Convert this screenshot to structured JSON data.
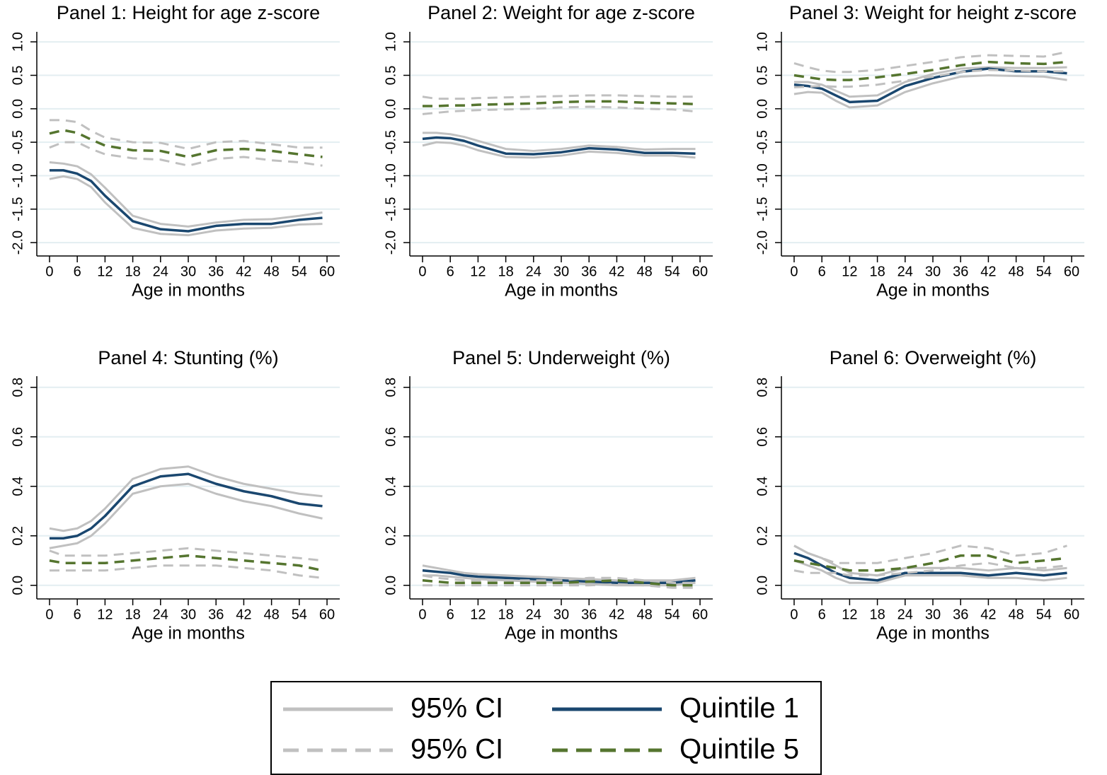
{
  "chart_data": [
    {
      "type": "line",
      "title": "Panel 1: Height for age z-score",
      "xlabel": "Age in months",
      "x": [
        0,
        3,
        6,
        9,
        12,
        18,
        24,
        30,
        36,
        42,
        48,
        54,
        59
      ],
      "xlim": [
        -2.75,
        62.75
      ],
      "xticks": [
        0,
        6,
        12,
        18,
        24,
        30,
        36,
        42,
        48,
        54,
        60
      ],
      "ylim": [
        -2.2,
        1.15
      ],
      "yticks": [
        {
          "value": -2,
          "label": "-2.0"
        },
        -1.5,
        {
          "value": -1,
          "label": "-1.0"
        },
        -0.5,
        {
          "value": 0,
          "label": "0.0"
        },
        0.5,
        {
          "value": 1,
          "label": "1.0"
        }
      ],
      "grid": true,
      "series": [
        {
          "lower": [
            -1.05,
            -1.01,
            -1.05,
            -1.17,
            -1.4,
            -1.78,
            -1.87,
            -1.89,
            -1.82,
            -1.79,
            -1.78,
            -1.73,
            -1.72
          ],
          "upper": [
            -0.8,
            -0.82,
            -0.86,
            -0.98,
            -1.18,
            -1.6,
            -1.72,
            -1.76,
            -1.7,
            -1.66,
            -1.65,
            -1.6,
            -1.55
          ]
        },
        {
          "values": [
            -0.92,
            -0.92,
            -0.97,
            -1.08,
            -1.3,
            -1.68,
            -1.8,
            -1.83,
            -1.75,
            -1.72,
            -1.72,
            -1.66,
            -1.63
          ]
        },
        {
          "lower": [
            -0.58,
            -0.5,
            -0.5,
            -0.6,
            -0.68,
            -0.74,
            -0.76,
            -0.85,
            -0.75,
            -0.72,
            -0.77,
            -0.8,
            -0.85
          ],
          "upper": [
            -0.17,
            -0.17,
            -0.2,
            -0.33,
            -0.43,
            -0.5,
            -0.51,
            -0.6,
            -0.5,
            -0.48,
            -0.53,
            -0.58,
            -0.58
          ]
        },
        {
          "values": [
            -0.37,
            -0.32,
            -0.36,
            -0.46,
            -0.55,
            -0.62,
            -0.63,
            -0.72,
            -0.62,
            -0.6,
            -0.63,
            -0.68,
            -0.72
          ]
        }
      ]
    },
    {
      "type": "line",
      "title": "Panel 2: Weight for age z-score",
      "xlabel": "Age in months",
      "x": [
        0,
        3,
        6,
        9,
        12,
        18,
        24,
        30,
        36,
        42,
        48,
        54,
        59
      ],
      "xlim": [
        -2.75,
        62.75
      ],
      "xticks": [
        0,
        6,
        12,
        18,
        24,
        30,
        36,
        42,
        48,
        54,
        60
      ],
      "ylim": [
        -2.2,
        1.15
      ],
      "yticks": [
        {
          "value": -2,
          "label": "-2.0"
        },
        -1.5,
        {
          "value": -1,
          "label": "-1.0"
        },
        -0.5,
        {
          "value": 0,
          "label": "0.0"
        },
        0.5,
        {
          "value": 1,
          "label": "1.0"
        }
      ],
      "grid": true,
      "series": [
        {
          "lower": [
            -0.55,
            -0.5,
            -0.51,
            -0.55,
            -0.62,
            -0.72,
            -0.73,
            -0.7,
            -0.64,
            -0.66,
            -0.7,
            -0.7,
            -0.73
          ],
          "upper": [
            -0.36,
            -0.36,
            -0.38,
            -0.42,
            -0.48,
            -0.6,
            -0.63,
            -0.6,
            -0.55,
            -0.57,
            -0.61,
            -0.6,
            -0.6
          ]
        },
        {
          "values": [
            -0.45,
            -0.43,
            -0.44,
            -0.48,
            -0.55,
            -0.67,
            -0.68,
            -0.65,
            -0.59,
            -0.61,
            -0.66,
            -0.66,
            -0.67
          ]
        },
        {
          "lower": [
            -0.08,
            -0.06,
            -0.04,
            -0.03,
            -0.02,
            -0.01,
            0,
            0.02,
            0.03,
            0.02,
            0,
            -0.01,
            -0.04
          ],
          "upper": [
            0.18,
            0.15,
            0.15,
            0.15,
            0.16,
            0.17,
            0.18,
            0.19,
            0.2,
            0.2,
            0.19,
            0.18,
            0.18
          ]
        },
        {
          "values": [
            0.04,
            0.04,
            0.05,
            0.05,
            0.06,
            0.07,
            0.08,
            0.1,
            0.11,
            0.11,
            0.09,
            0.08,
            0.07
          ]
        }
      ]
    },
    {
      "type": "line",
      "title": "Panel 3: Weight for height z-score",
      "xlabel": "Age in months",
      "x": [
        0,
        3,
        6,
        9,
        12,
        18,
        24,
        30,
        36,
        42,
        48,
        54,
        59
      ],
      "xlim": [
        -2.75,
        62.75
      ],
      "xticks": [
        0,
        6,
        12,
        18,
        24,
        30,
        36,
        42,
        48,
        54,
        60
      ],
      "ylim": [
        -2.2,
        1.15
      ],
      "yticks": [
        {
          "value": -2,
          "label": "-2.0"
        },
        -1.5,
        {
          "value": -1,
          "label": "-1.0"
        },
        -0.5,
        {
          "value": 0,
          "label": "0.0"
        },
        0.5,
        {
          "value": 1,
          "label": "1.0"
        }
      ],
      "grid": true,
      "series": [
        {
          "lower": [
            0.22,
            0.25,
            0.24,
            0.12,
            0.02,
            0.05,
            0.25,
            0.38,
            0.48,
            0.5,
            0.49,
            0.48,
            0.43
          ],
          "upper": [
            0.4,
            0.4,
            0.36,
            0.27,
            0.18,
            0.2,
            0.4,
            0.52,
            0.6,
            0.62,
            0.61,
            0.61,
            0.62
          ]
        },
        {
          "values": [
            0.36,
            0.34,
            0.3,
            0.2,
            0.1,
            0.12,
            0.34,
            0.46,
            0.55,
            0.6,
            0.56,
            0.56,
            0.53
          ]
        },
        {
          "lower": [
            0.32,
            0.33,
            0.34,
            0.33,
            0.33,
            0.36,
            0.42,
            0.48,
            0.55,
            0.58,
            0.57,
            0.56,
            0.56
          ],
          "upper": [
            0.68,
            0.62,
            0.57,
            0.55,
            0.55,
            0.58,
            0.64,
            0.7,
            0.77,
            0.8,
            0.79,
            0.78,
            0.85
          ]
        },
        {
          "values": [
            0.5,
            0.47,
            0.44,
            0.43,
            0.43,
            0.47,
            0.52,
            0.58,
            0.65,
            0.7,
            0.68,
            0.67,
            0.7
          ]
        }
      ]
    },
    {
      "type": "line",
      "title": "Panel 4: Stunting (%)",
      "xlabel": "Age in months",
      "x": [
        0,
        3,
        6,
        9,
        12,
        18,
        24,
        30,
        36,
        42,
        48,
        54,
        59
      ],
      "xlim": [
        -2.75,
        62.75
      ],
      "xticks": [
        0,
        6,
        12,
        18,
        24,
        30,
        36,
        42,
        48,
        54,
        60
      ],
      "ylim": [
        -0.055,
        0.845
      ],
      "yticks": [
        {
          "value": 0,
          "label": "0.0"
        },
        0.2,
        0.4,
        0.6,
        0.8
      ],
      "grid": true,
      "series": [
        {
          "lower": [
            0.15,
            0.16,
            0.17,
            0.2,
            0.25,
            0.37,
            0.4,
            0.41,
            0.37,
            0.34,
            0.32,
            0.29,
            0.27
          ],
          "upper": [
            0.23,
            0.22,
            0.23,
            0.26,
            0.31,
            0.43,
            0.47,
            0.48,
            0.44,
            0.41,
            0.39,
            0.37,
            0.36
          ]
        },
        {
          "values": [
            0.19,
            0.19,
            0.2,
            0.23,
            0.28,
            0.4,
            0.44,
            0.45,
            0.41,
            0.38,
            0.36,
            0.33,
            0.32
          ]
        },
        {
          "lower": [
            0.06,
            0.06,
            0.06,
            0.06,
            0.06,
            0.07,
            0.08,
            0.08,
            0.08,
            0.07,
            0.06,
            0.04,
            0.03
          ],
          "upper": [
            0.14,
            0.12,
            0.12,
            0.12,
            0.12,
            0.13,
            0.14,
            0.15,
            0.14,
            0.13,
            0.12,
            0.11,
            0.1
          ]
        },
        {
          "values": [
            0.1,
            0.09,
            0.09,
            0.09,
            0.09,
            0.1,
            0.11,
            0.12,
            0.11,
            0.1,
            0.09,
            0.08,
            0.06
          ]
        }
      ]
    },
    {
      "type": "line",
      "title": "Panel 5: Underweight (%)",
      "xlabel": "Age in months",
      "x": [
        0,
        3,
        6,
        9,
        12,
        18,
        24,
        30,
        36,
        42,
        48,
        54,
        59
      ],
      "xlim": [
        -2.75,
        62.75
      ],
      "xticks": [
        0,
        6,
        12,
        18,
        24,
        30,
        36,
        42,
        48,
        54,
        60
      ],
      "ylim": [
        -0.055,
        0.845
      ],
      "yticks": [
        {
          "value": 0,
          "label": "0.0"
        },
        0.2,
        0.4,
        0.6,
        0.8
      ],
      "grid": true,
      "series": [
        {
          "lower": [
            0.04,
            0.04,
            0.035,
            0.03,
            0.025,
            0.02,
            0.015,
            0.01,
            0.005,
            0,
            0,
            0,
            0.01
          ],
          "upper": [
            0.08,
            0.07,
            0.06,
            0.05,
            0.045,
            0.04,
            0.035,
            0.03,
            0.025,
            0.02,
            0.02,
            0.02,
            0.03
          ]
        },
        {
          "values": [
            0.06,
            0.055,
            0.05,
            0.04,
            0.035,
            0.03,
            0.025,
            0.02,
            0.015,
            0.01,
            0.01,
            0.01,
            0.02
          ]
        },
        {
          "lower": [
            0,
            0,
            0,
            0,
            0,
            0,
            0,
            0,
            0,
            0.005,
            0,
            -0.01,
            -0.01
          ],
          "upper": [
            0.04,
            0.03,
            0.025,
            0.02,
            0.02,
            0.02,
            0.02,
            0.02,
            0.03,
            0.03,
            0.02,
            0.01,
            0.01
          ]
        },
        {
          "values": [
            0.02,
            0.015,
            0.01,
            0.01,
            0.01,
            0.01,
            0.01,
            0.01,
            0.015,
            0.02,
            0.01,
            0,
            0
          ]
        }
      ]
    },
    {
      "type": "line",
      "title": "Panel 6: Overweight (%)",
      "xlabel": "Age in months",
      "x": [
        0,
        3,
        6,
        9,
        12,
        18,
        24,
        30,
        36,
        42,
        48,
        54,
        59
      ],
      "xlim": [
        -2.75,
        62.75
      ],
      "xticks": [
        0,
        6,
        12,
        18,
        24,
        30,
        36,
        42,
        48,
        54,
        60
      ],
      "ylim": [
        -0.055,
        0.845
      ],
      "yticks": [
        {
          "value": 0,
          "label": "0.0"
        },
        0.2,
        0.4,
        0.6,
        0.8
      ],
      "grid": true,
      "series": [
        {
          "lower": [
            0.1,
            0.08,
            0.06,
            0.03,
            0.01,
            0.01,
            0.04,
            0.04,
            0.04,
            0.03,
            0.03,
            0.02,
            0.03
          ],
          "upper": [
            0.16,
            0.13,
            0.11,
            0.08,
            0.05,
            0.04,
            0.07,
            0.07,
            0.07,
            0.06,
            0.07,
            0.06,
            0.07
          ]
        },
        {
          "values": [
            0.13,
            0.11,
            0.08,
            0.05,
            0.03,
            0.02,
            0.05,
            0.05,
            0.05,
            0.04,
            0.05,
            0.04,
            0.05
          ]
        },
        {
          "lower": [
            0.06,
            0.05,
            0.05,
            0.05,
            0.04,
            0.04,
            0.05,
            0.06,
            0.08,
            0.09,
            0.07,
            0.07,
            0.08
          ],
          "upper": [
            0.16,
            0.13,
            0.11,
            0.09,
            0.09,
            0.09,
            0.11,
            0.13,
            0.16,
            0.15,
            0.12,
            0.13,
            0.16
          ]
        },
        {
          "values": [
            0.1,
            0.09,
            0.08,
            0.07,
            0.06,
            0.06,
            0.07,
            0.09,
            0.12,
            0.12,
            0.09,
            0.1,
            0.11
          ]
        }
      ]
    }
  ],
  "legend": [
    {
      "name": "95% CI",
      "color": "#c0c0c0",
      "dash": false
    },
    {
      "name": "Quintile 1",
      "color": "#1a476f",
      "dash": false
    },
    {
      "name": "95% CI",
      "color": "#c0c0c0",
      "dash": true
    },
    {
      "name": "Quintile 5",
      "color": "#55752f",
      "dash": true
    }
  ]
}
